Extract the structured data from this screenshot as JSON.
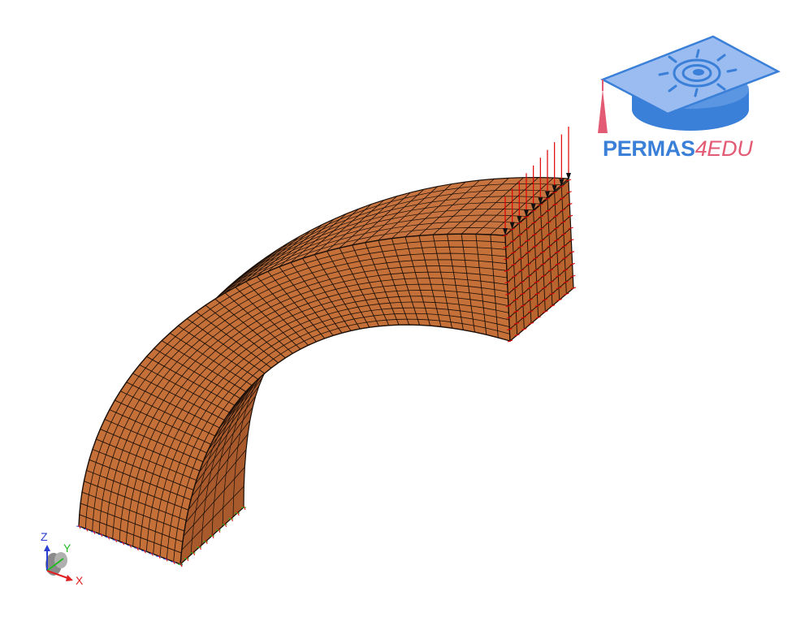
{
  "logo": {
    "text_main": "PERMAS",
    "text_accent": "4EDU",
    "colors": {
      "main": "#3a7fd8",
      "accent": "#e35a74",
      "cap": "#9bbcf0"
    }
  },
  "model": {
    "color_fill": "#c87440",
    "color_fill_inner": "#a85a2c",
    "color_mesh": "#1a0f08"
  },
  "loads": {
    "color": "#e00000"
  },
  "triad": {
    "z_label": "Z",
    "y_label": "Y",
    "x_label": "X",
    "colors": {
      "z": "#2a3fd0",
      "y": "#22bb22",
      "x": "#e02020"
    }
  }
}
